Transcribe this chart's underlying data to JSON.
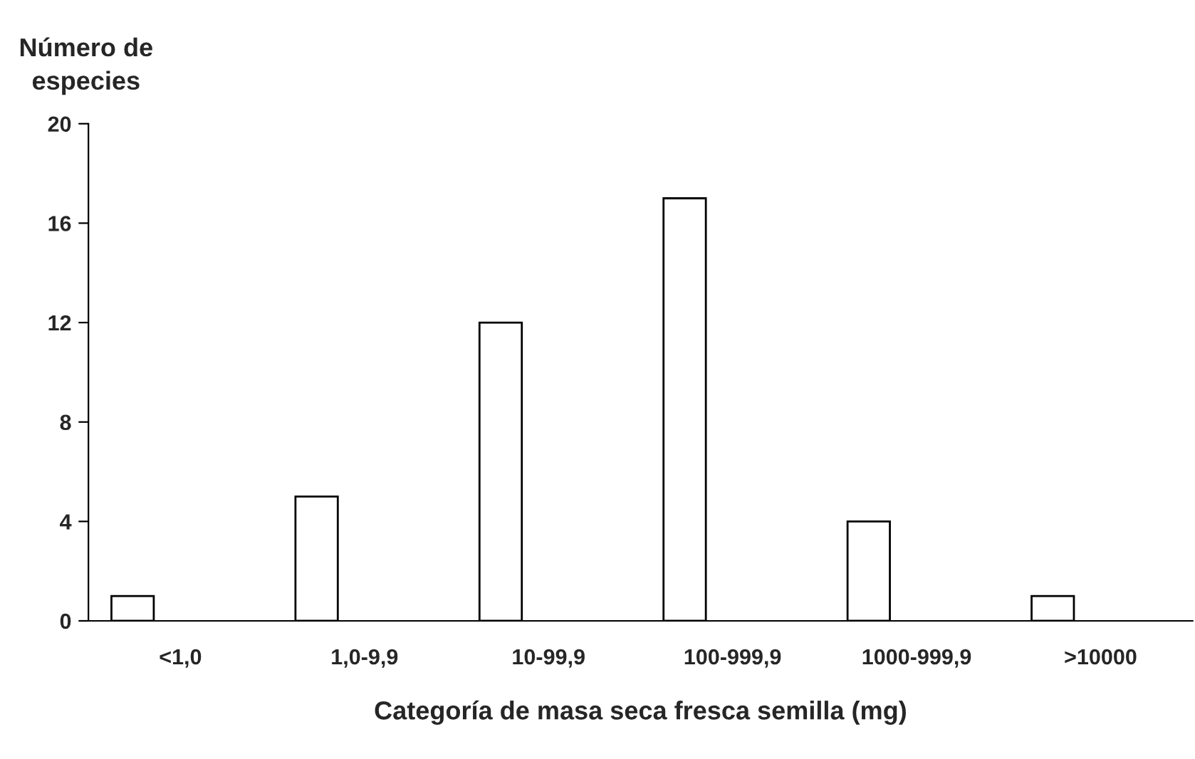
{
  "chart_data": {
    "type": "bar",
    "xlabel": "Categoría de masa seca fresca semilla (mg)",
    "ylabel": "Número de especies",
    "categories": [
      "<1,0",
      "1,0-9,9",
      "10-99,9",
      "100-999,9",
      "1000-999,9",
      ">10000"
    ],
    "values": [
      1,
      5,
      12,
      17,
      4,
      1
    ],
    "color": "#ffffff",
    "ylim": [
      0,
      20
    ],
    "yticks": [
      0,
      4,
      8,
      12,
      16,
      20
    ],
    "grid": false,
    "legend": false
  }
}
